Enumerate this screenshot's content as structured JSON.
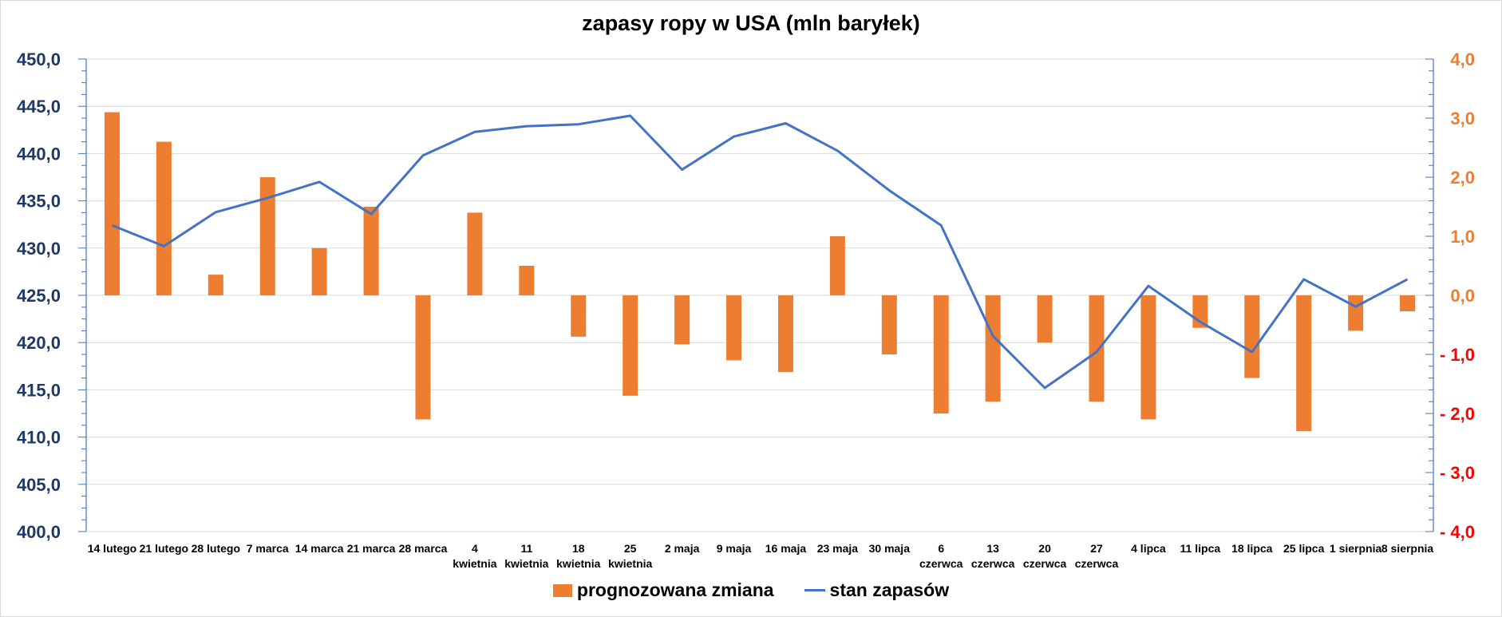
{
  "chart_data": {
    "type": "bar+line",
    "title": "zapasy ropy w USA (mln baryłek)",
    "categories": [
      [
        "14 lutego"
      ],
      [
        "21 lutego"
      ],
      [
        "28 lutego"
      ],
      [
        "7 marca"
      ],
      [
        "14 marca"
      ],
      [
        "21 marca"
      ],
      [
        "28 marca"
      ],
      [
        "4",
        "kwietnia"
      ],
      [
        "11",
        "kwietnia"
      ],
      [
        "18",
        "kwietnia"
      ],
      [
        "25",
        "kwietnia"
      ],
      [
        "2 maja"
      ],
      [
        "9 maja"
      ],
      [
        "16 maja"
      ],
      [
        "23 maja"
      ],
      [
        "30 maja"
      ],
      [
        "6",
        "czerwca"
      ],
      [
        "13",
        "czerwca"
      ],
      [
        "20",
        "czerwca"
      ],
      [
        "27",
        "czerwca"
      ],
      [
        "4 lipca"
      ],
      [
        "11 lipca"
      ],
      [
        "18 lipca"
      ],
      [
        "25 lipca"
      ],
      [
        "1 sierpnia"
      ],
      [
        "8 sierpnia"
      ]
    ],
    "series": [
      {
        "name": "prognozowana zmiana",
        "type": "bar",
        "axis": "right",
        "color": "#ed7d31",
        "values": [
          3.1,
          2.6,
          0.35,
          2.0,
          0.8,
          1.5,
          -2.1,
          1.4,
          0.5,
          -0.7,
          -1.7,
          -0.83,
          -1.1,
          -1.3,
          1.0,
          -1.0,
          -2.0,
          -1.8,
          -0.8,
          -1.8,
          -2.1,
          -0.55,
          -1.4,
          -2.3,
          -0.6,
          -0.27
        ]
      },
      {
        "name": "stan zapasów",
        "type": "line",
        "axis": "left",
        "color": "#4472c4",
        "values": [
          432.4,
          430.2,
          433.8,
          null,
          437.0,
          433.6,
          439.8,
          442.3,
          442.9,
          443.1,
          444.0,
          438.3,
          441.8,
          443.2,
          440.3,
          436.1,
          null,
          420.7,
          415.2,
          419.0,
          426.0,
          422.2,
          419.0,
          426.7,
          null,
          null
        ]
      }
    ],
    "line_values_full": [
      432.4,
      430.2,
      433.8,
      435.3,
      437.0,
      433.6,
      439.8,
      442.3,
      442.9,
      443.1,
      444.0,
      438.3,
      441.8,
      443.2,
      440.3,
      436.1,
      432.4,
      420.7,
      415.2,
      419.0,
      426.0,
      422.2,
      419.0,
      426.7,
      423.8,
      426.7
    ],
    "left_axis": {
      "ylim": [
        400,
        450
      ],
      "ticks": [
        "400,0",
        "405,0",
        "410,0",
        "415,0",
        "420,0",
        "425,0",
        "430,0",
        "435,0",
        "440,0",
        "445,0",
        "450,0"
      ],
      "tick_values": [
        400,
        405,
        410,
        415,
        420,
        425,
        430,
        435,
        440,
        445,
        450
      ],
      "color": "#1f3864"
    },
    "right_axis": {
      "ylim": [
        -4,
        4
      ],
      "ticks": [
        "- 4,0",
        "- 3,0",
        "- 2,0",
        "- 1,0",
        "0,0",
        "1,0",
        "2,0",
        "3,0",
        "4,0"
      ],
      "tick_values": [
        -4,
        -3,
        -2,
        -1,
        0,
        1,
        2,
        3,
        4
      ],
      "positive_color": "#ed7d31",
      "negative_color": "#ff0000"
    },
    "grid": true,
    "legend": "bottom-center"
  },
  "legend": {
    "bar_label": "prognozowana zmiana",
    "line_label": "stan zapasów"
  }
}
